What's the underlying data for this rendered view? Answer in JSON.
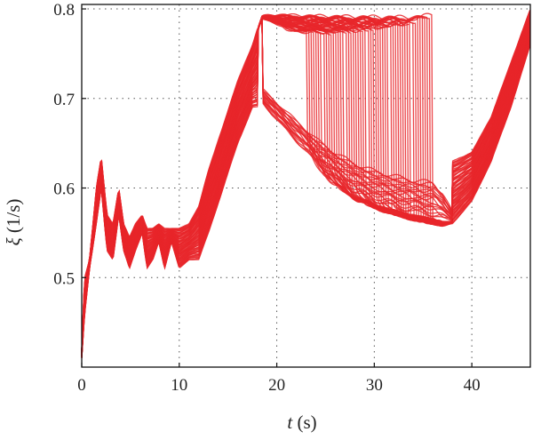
{
  "chart_data": {
    "type": "line",
    "title": "",
    "xlabel": {
      "symbol": "t",
      "unit": "(s)"
    },
    "ylabel": {
      "symbol": "ξ",
      "unit": "(1/s)"
    },
    "xlim": [
      0,
      46
    ],
    "ylim": [
      0.4,
      0.805
    ],
    "xticks": [
      0,
      10,
      20,
      30,
      40
    ],
    "yticks": [
      0.5,
      0.6,
      0.7,
      0.8
    ],
    "xtick_labels": [
      "0",
      "10",
      "20",
      "30",
      "40"
    ],
    "ytick_labels": [
      "0.5",
      "0.6",
      "0.7",
      "0.8"
    ],
    "grid": true,
    "grid_style": "dotted",
    "legend": "none",
    "series_color": "#e8262a",
    "ensemble_size": 70,
    "envelope": {
      "description": "ensemble of trajectories; lower and upper bounds of the band",
      "x": [
        0,
        0.3,
        0.8,
        1.5,
        2.0,
        2.6,
        3.2,
        3.8,
        4.3,
        4.9,
        5.5,
        6.2,
        6.7,
        7.3,
        7.9,
        8.5,
        9.2,
        10.0,
        11.0,
        12.0,
        13.0,
        14.5,
        16.0,
        17.5,
        18.5,
        20.0,
        22.0,
        24.0,
        26.0,
        28.0,
        30.0,
        32.0,
        34.0,
        36.0,
        37.0,
        38.0,
        40.0,
        42.0,
        44.0,
        46.0
      ],
      "lower": [
        0.41,
        0.46,
        0.51,
        0.56,
        0.6,
        0.53,
        0.52,
        0.57,
        0.53,
        0.51,
        0.53,
        0.55,
        0.51,
        0.52,
        0.54,
        0.51,
        0.54,
        0.51,
        0.52,
        0.52,
        0.55,
        0.6,
        0.65,
        0.69,
        0.69,
        0.67,
        0.645,
        0.62,
        0.6,
        0.585,
        0.575,
        0.568,
        0.562,
        0.558,
        0.556,
        0.56,
        0.585,
        0.63,
        0.69,
        0.76
      ],
      "upper": [
        0.42,
        0.5,
        0.52,
        0.6,
        0.635,
        0.57,
        0.56,
        0.6,
        0.56,
        0.545,
        0.56,
        0.57,
        0.555,
        0.555,
        0.56,
        0.555,
        0.555,
        0.555,
        0.56,
        0.58,
        0.62,
        0.67,
        0.72,
        0.76,
        0.795,
        0.797,
        0.797,
        0.797,
        0.797,
        0.797,
        0.797,
        0.797,
        0.797,
        0.8,
        0.75,
        0.63,
        0.64,
        0.68,
        0.74,
        0.8
      ]
    }
  }
}
